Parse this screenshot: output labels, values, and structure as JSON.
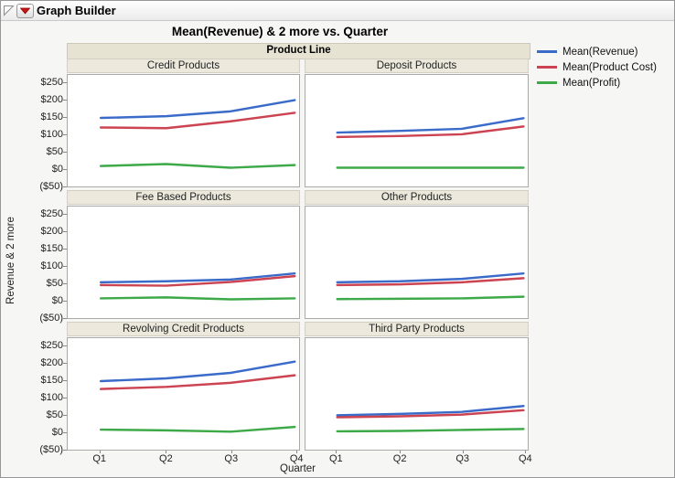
{
  "window": {
    "title": "Graph Builder"
  },
  "chart": {
    "title": "Mean(Revenue) & 2 more vs. Quarter",
    "y_axis_title": "Revenue & 2 more",
    "x_axis_title": "Quarter",
    "group_header": "Product Line"
  },
  "colors": {
    "revenue": "#3B6BC9",
    "product_cost": "#CC4352",
    "profit": "#3EA948",
    "header_bg": "#e7e3d3",
    "subheader_bg": "#ece9dc",
    "panel_border": "#a9a9a9"
  },
  "chart_data": {
    "type": "line",
    "x": [
      "Q1",
      "Q2",
      "Q3",
      "Q4"
    ],
    "y_ticks": [
      "$250",
      "$200",
      "$150",
      "$100",
      "$50",
      "$0",
      "($50)"
    ],
    "y_tick_values": [
      250,
      200,
      150,
      100,
      50,
      0,
      -50
    ],
    "ylim": [
      -50,
      250
    ],
    "grid": false,
    "legend_position": "top-right-outside",
    "series_names": [
      "Mean(Revenue)",
      "Mean(Product Cost)",
      "Mean(Profit)"
    ],
    "series_colors": [
      "#3B6BC9",
      "#CC4352",
      "#3EA948"
    ],
    "layout": {
      "rows": 3,
      "columns": 2,
      "group_label": "Product Line"
    },
    "panels": [
      {
        "label": "Credit Products",
        "series": [
          {
            "name": "Mean(Revenue)",
            "values": [
              148,
              153,
              167,
              200
            ]
          },
          {
            "name": "Mean(Product Cost)",
            "values": [
              120,
              118,
              138,
              163
            ]
          },
          {
            "name": "Mean(Profit)",
            "values": [
              7,
              13,
              2,
              10
            ]
          }
        ]
      },
      {
        "label": "Deposit Products",
        "series": [
          {
            "name": "Mean(Revenue)",
            "values": [
              105,
              110,
              116,
              147
            ]
          },
          {
            "name": "Mean(Product Cost)",
            "values": [
              92,
              95,
              100,
              123
            ]
          },
          {
            "name": "Mean(Profit)",
            "values": [
              2,
              2,
              2,
              2
            ]
          }
        ]
      },
      {
        "label": "Fee Based Products",
        "series": [
          {
            "name": "Mean(Revenue)",
            "values": [
              52,
              55,
              60,
              78
            ]
          },
          {
            "name": "Mean(Product Cost)",
            "values": [
              44,
              42,
              53,
              70
            ]
          },
          {
            "name": "Mean(Profit)",
            "values": [
              5,
              8,
              2,
              5
            ]
          }
        ]
      },
      {
        "label": "Other Products",
        "series": [
          {
            "name": "Mean(Revenue)",
            "values": [
              52,
              55,
              62,
              78
            ]
          },
          {
            "name": "Mean(Product Cost)",
            "values": [
              44,
              46,
              52,
              64
            ]
          },
          {
            "name": "Mean(Profit)",
            "values": [
              3,
              4,
              5,
              10
            ]
          }
        ]
      },
      {
        "label": "Revolving Credit Products",
        "series": [
          {
            "name": "Mean(Revenue)",
            "values": [
              148,
              156,
              172,
              205
            ]
          },
          {
            "name": "Mean(Product Cost)",
            "values": [
              125,
              131,
              143,
              165
            ]
          },
          {
            "name": "Mean(Profit)",
            "values": [
              6,
              4,
              0,
              14
            ]
          }
        ]
      },
      {
        "label": "Third Party Products",
        "series": [
          {
            "name": "Mean(Revenue)",
            "values": [
              48,
              52,
              58,
              75
            ]
          },
          {
            "name": "Mean(Product Cost)",
            "values": [
              42,
              45,
              50,
              63
            ]
          },
          {
            "name": "Mean(Profit)",
            "values": [
              1,
              2,
              5,
              8
            ]
          }
        ]
      }
    ]
  }
}
